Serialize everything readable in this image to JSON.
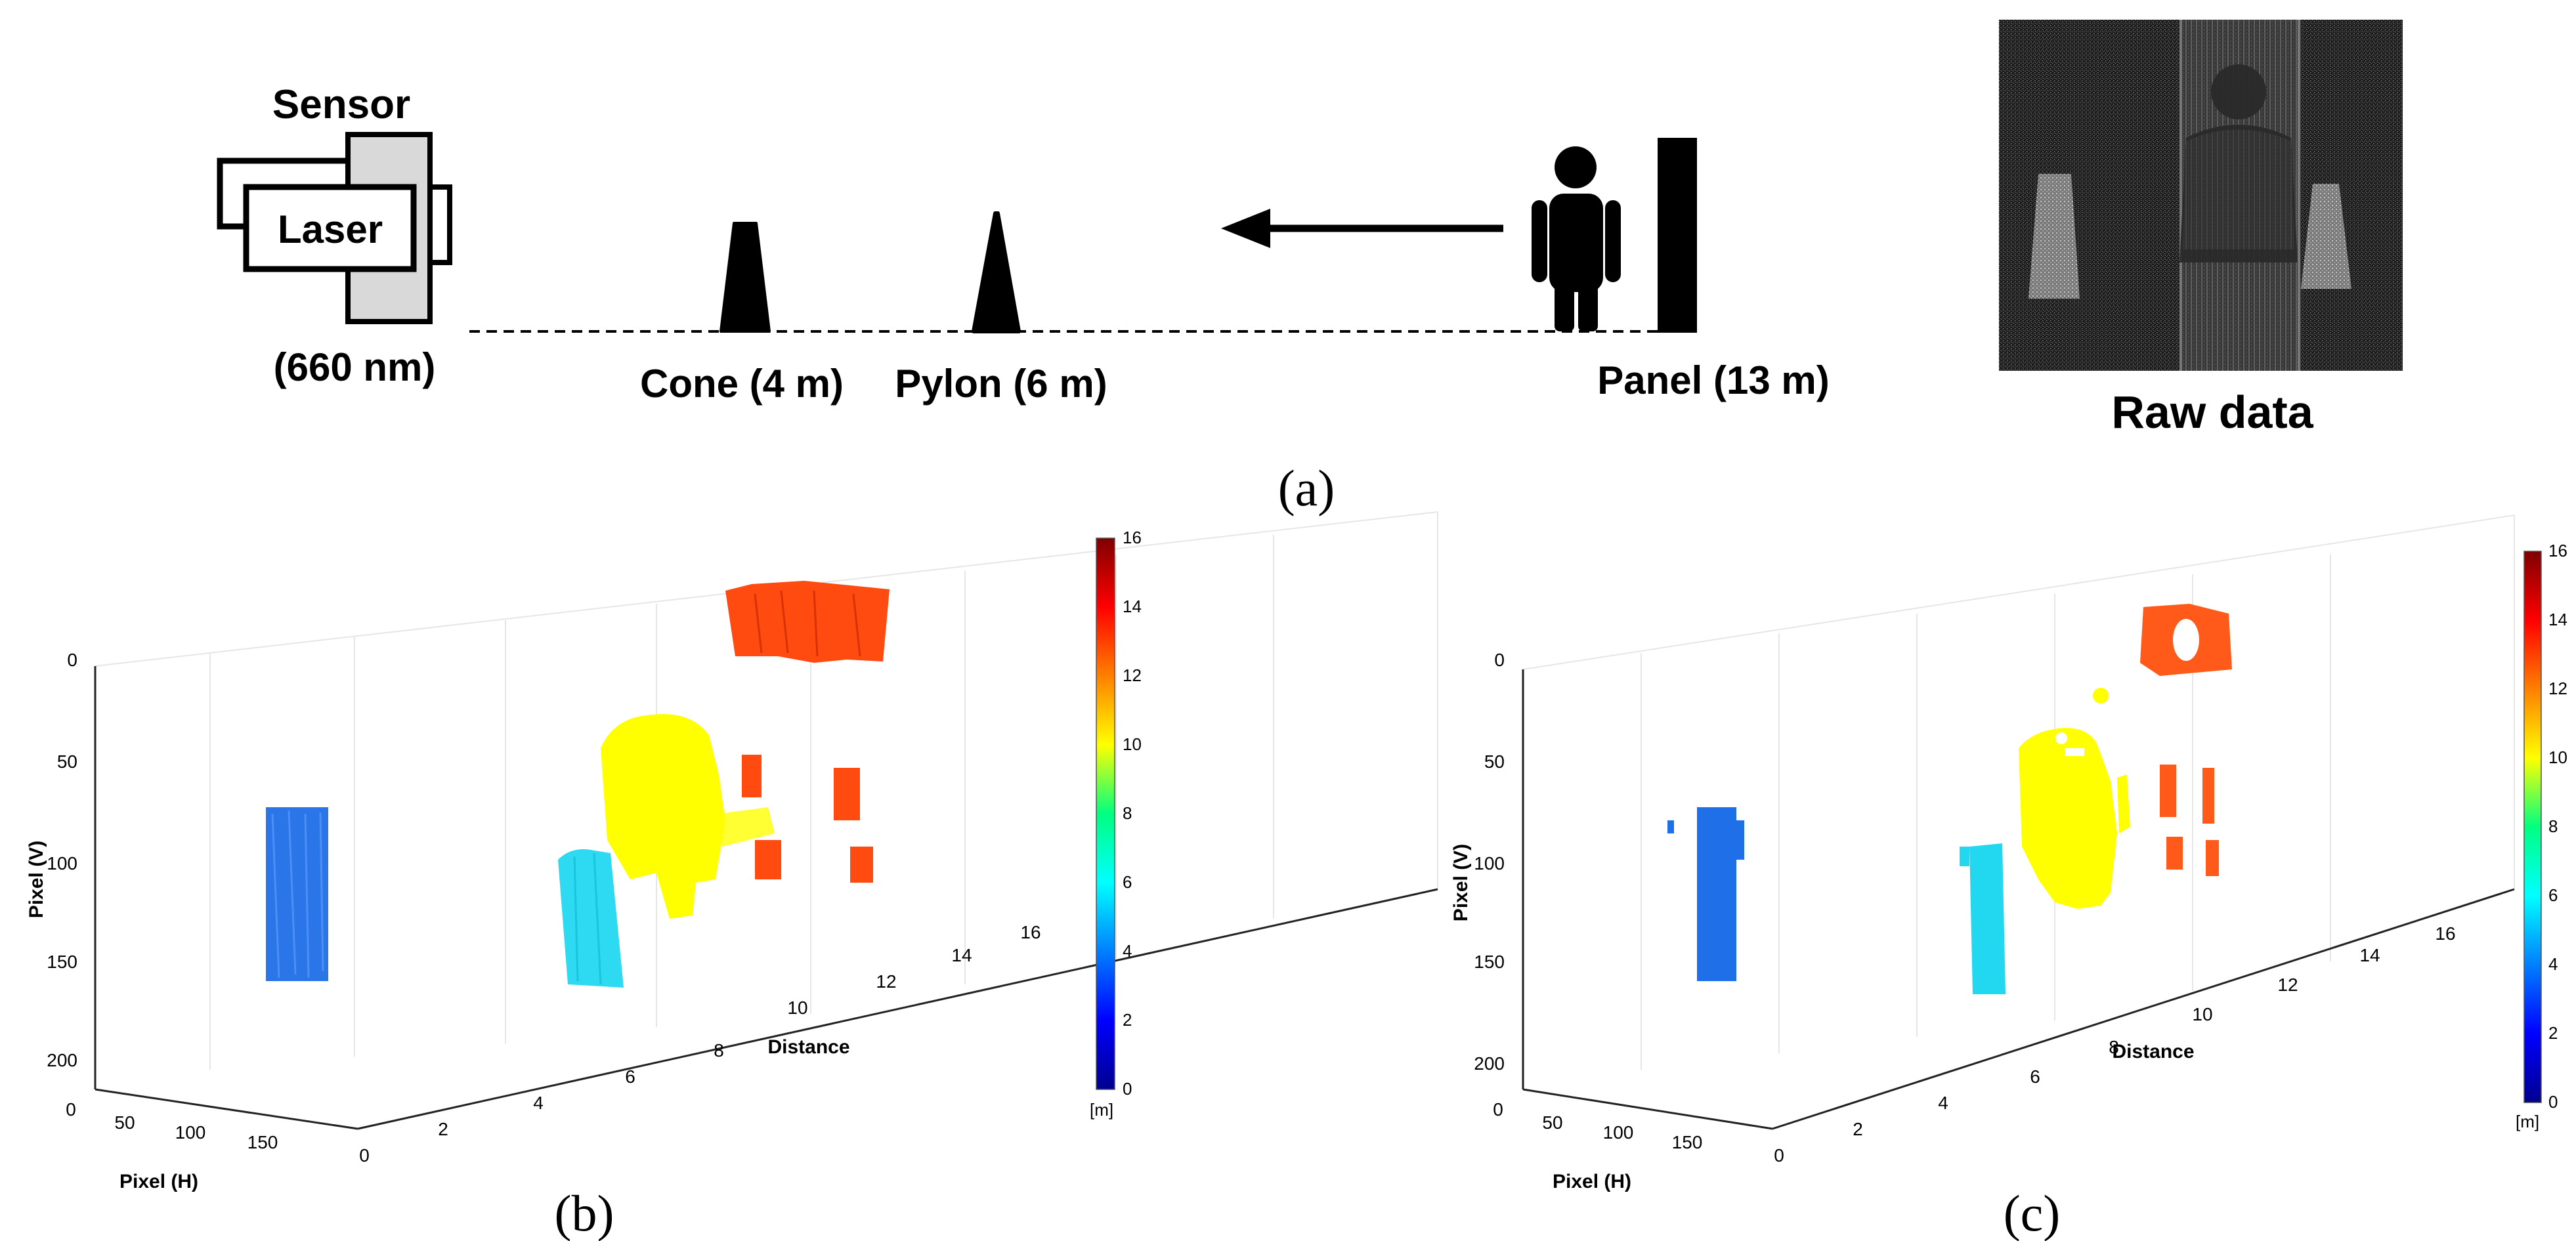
{
  "panel_a": {
    "sensor_title": "Sensor",
    "laser_label": "Laser",
    "wavelength": "(660 nm)",
    "cone_label": "Cone (4 m)",
    "pylon_label": "Pylon (6 m)",
    "panel_label": "Panel (13 m)",
    "raw_title": "Raw data",
    "caption": "(a)"
  },
  "panel_b": {
    "caption": "(b)",
    "ylabel": "Pixel (V)",
    "xlabel": "Pixel (H)",
    "zlabel": "Distance",
    "v_ticks": [
      "0",
      "50",
      "100",
      "150",
      "200"
    ],
    "h_ticks": [
      "0",
      "50",
      "100",
      "150"
    ],
    "d_ticks": [
      "0",
      "2",
      "4",
      "6",
      "8",
      "10",
      "12",
      "14",
      "16"
    ],
    "cbar_ticks": [
      "0",
      "2",
      "4",
      "6",
      "8",
      "10",
      "12",
      "14",
      "16"
    ],
    "cbar_unit": "[m]"
  },
  "panel_c": {
    "caption": "(c)",
    "ylabel": "Pixel (V)",
    "xlabel": "Pixel (H)",
    "zlabel": "Distance",
    "v_ticks": [
      "0",
      "50",
      "100",
      "150",
      "200"
    ],
    "h_ticks": [
      "0",
      "50",
      "100",
      "150"
    ],
    "d_ticks": [
      "0",
      "2",
      "4",
      "6",
      "8",
      "10",
      "12",
      "14",
      "16"
    ],
    "cbar_ticks": [
      "0",
      "2",
      "4",
      "6",
      "8",
      "10",
      "12",
      "14",
      "16"
    ],
    "cbar_unit": "[m]"
  },
  "colors": {
    "cone": "#1f6fe8",
    "pylon": "#22d8f0",
    "person": "#ffff00",
    "panel_b": "#ff4a10",
    "panel_c": "#ff5a1a"
  }
}
